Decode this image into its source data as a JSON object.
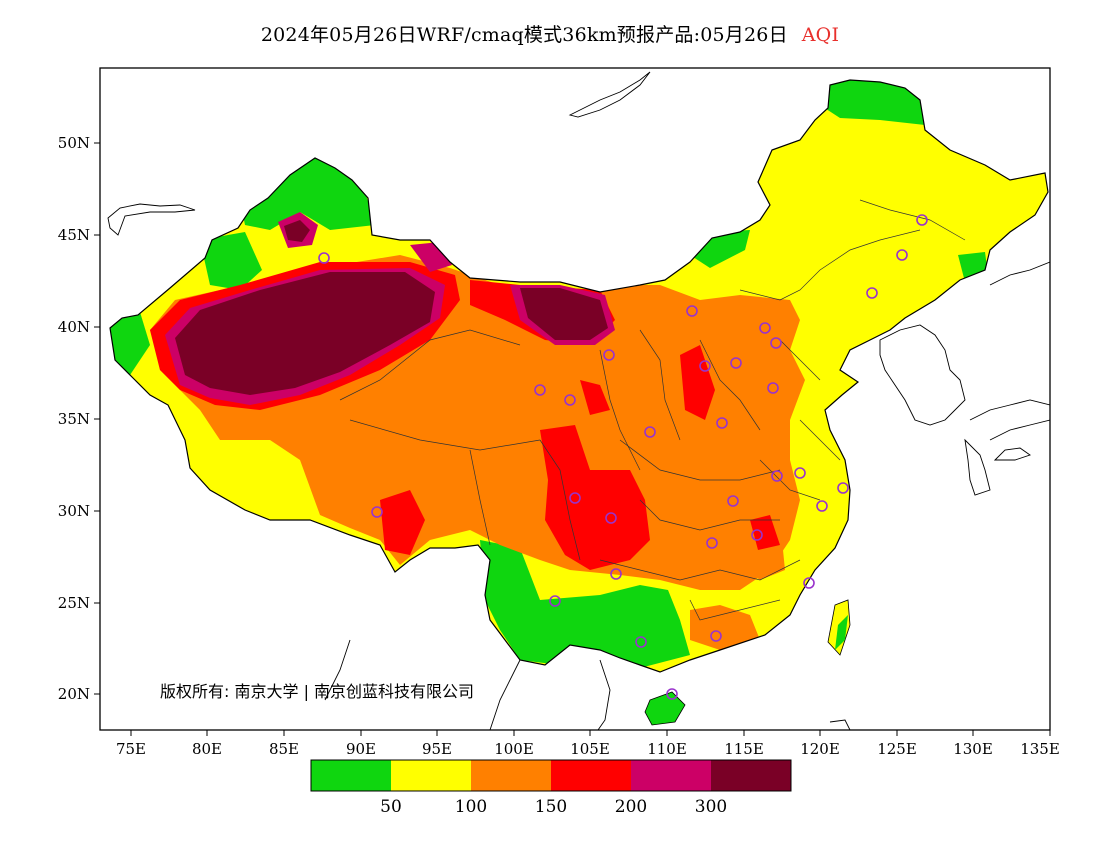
{
  "title": {
    "main": "2024年05月26日WRF/cmaq模式36km预报产品:05月26日",
    "variable": "AQI"
  },
  "copyright": "版权所有: 南京大学 | 南京创蓝科技有限公司",
  "axes": {
    "lon_ticks": [
      "75E",
      "80E",
      "85E",
      "90E",
      "95E",
      "100E",
      "105E",
      "110E",
      "115E",
      "120E",
      "125E",
      "130E",
      "135E"
    ],
    "lat_ticks": [
      "50N",
      "45N",
      "40N",
      "35N",
      "30N",
      "25N",
      "20N"
    ]
  },
  "legend": {
    "colors": [
      "#0fd60f",
      "#ffff00",
      "#ff8000",
      "#ff0000",
      "#cc0066",
      "#7a0026"
    ],
    "labels": [
      "50",
      "100",
      "150",
      "200",
      "300"
    ]
  },
  "palette": {
    "green": "#0fd60f",
    "yellow": "#ffff00",
    "orange": "#ff8000",
    "red": "#ff0000",
    "magenta": "#cc0066",
    "maroon": "#7a0026",
    "station_ring": "#9933cc"
  }
}
